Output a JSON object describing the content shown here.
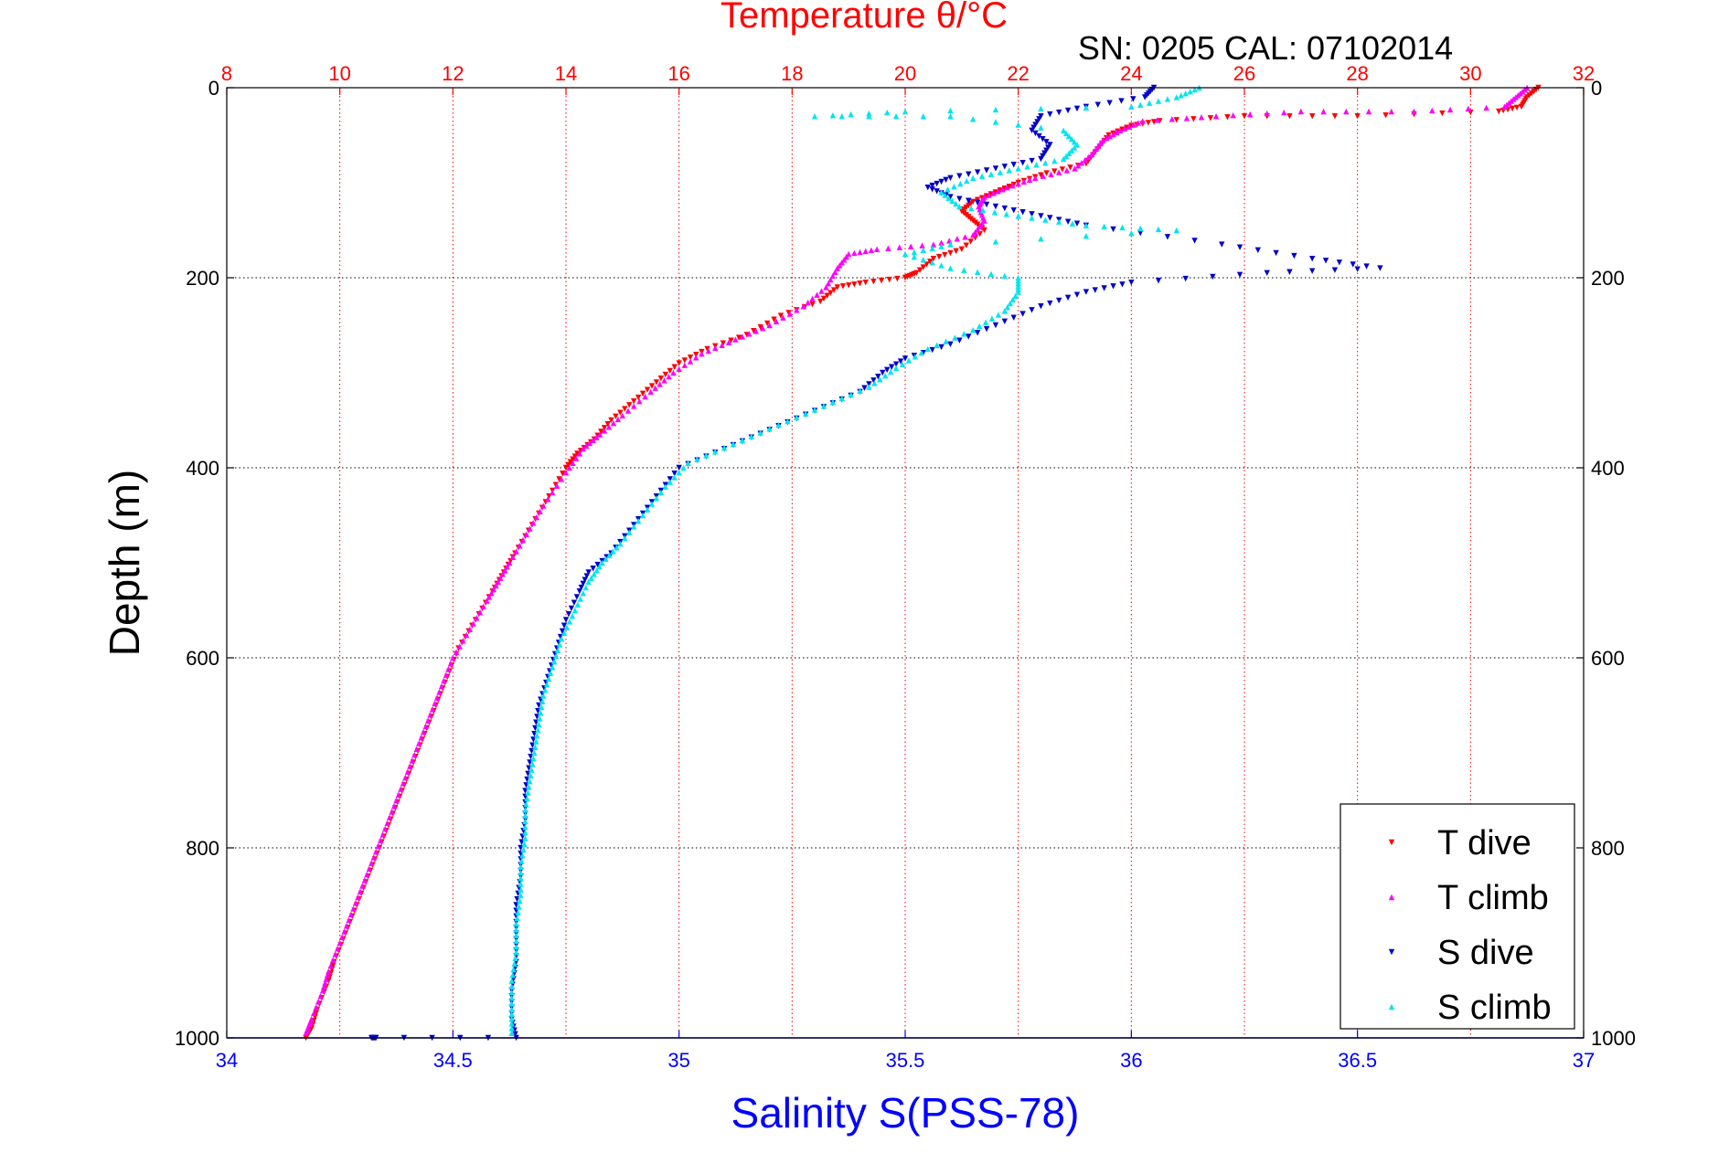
{
  "header": {
    "top_title": "Temperature θ/°C",
    "serial_text": "SN: 0205  CAL: 07102014"
  },
  "colors": {
    "temperature_axis": "#ff0000",
    "salinity_axis": "#0000ff",
    "t_dive": "#ff0000",
    "t_climb": "#ff00ff",
    "s_dive": "#0000cc",
    "s_climb": "#00e5ee",
    "grid": "#000000"
  },
  "chart_data": {
    "type": "scatter",
    "ylabel": "Depth (m)",
    "xlabel_bottom": "Salinity S(PSS-78)",
    "xlabel_top": "Temperature θ/°C",
    "ylim": [
      0,
      1000
    ],
    "y_reversed": true,
    "y_ticks": [
      "0",
      "200",
      "400",
      "600",
      "800",
      "1000"
    ],
    "x_top_lim": [
      8,
      32
    ],
    "x_top_ticks": [
      "8",
      "10",
      "12",
      "14",
      "16",
      "18",
      "20",
      "22",
      "24",
      "26",
      "28",
      "30",
      "32"
    ],
    "x_bottom_lim": [
      34,
      37
    ],
    "x_bottom_ticks": [
      "34",
      "34.5",
      "35",
      "35.5",
      "36",
      "36.5",
      "37"
    ],
    "grid": true,
    "legend_placement": "bottom-right",
    "legend": [
      "T dive",
      "T climb",
      "S dive",
      "S climb"
    ],
    "series": [
      {
        "name": "T dive",
        "axis": "top",
        "marker": "triangle-down",
        "points": [
          [
            31.2,
            0
          ],
          [
            31.0,
            10
          ],
          [
            30.9,
            20
          ],
          [
            30.5,
            25
          ],
          [
            28.0,
            30
          ],
          [
            26.0,
            30
          ],
          [
            24.5,
            35
          ],
          [
            24.0,
            40
          ],
          [
            23.6,
            50
          ],
          [
            23.4,
            65
          ],
          [
            23.2,
            80
          ],
          [
            22.5,
            90
          ],
          [
            22.0,
            100
          ],
          [
            21.6,
            110
          ],
          [
            21.2,
            120
          ],
          [
            21.0,
            130
          ],
          [
            21.2,
            140
          ],
          [
            21.4,
            150
          ],
          [
            21.0,
            170
          ],
          [
            20.5,
            180
          ],
          [
            20.2,
            195
          ],
          [
            20.0,
            200
          ],
          [
            19.3,
            205
          ],
          [
            18.8,
            210
          ],
          [
            18.5,
            225
          ],
          [
            17.8,
            240
          ],
          [
            17.2,
            260
          ],
          [
            16.5,
            275
          ],
          [
            16.0,
            290
          ],
          [
            15.6,
            310
          ],
          [
            15.2,
            330
          ],
          [
            14.8,
            350
          ],
          [
            14.5,
            370
          ],
          [
            14.2,
            385
          ],
          [
            14.0,
            400
          ],
          [
            13.7,
            430
          ],
          [
            13.4,
            460
          ],
          [
            13.1,
            490
          ],
          [
            12.9,
            510
          ],
          [
            12.7,
            530
          ],
          [
            12.4,
            560
          ],
          [
            12.1,
            590
          ],
          [
            11.9,
            620
          ],
          [
            11.7,
            650
          ],
          [
            11.5,
            680
          ],
          [
            11.3,
            710
          ],
          [
            11.1,
            740
          ],
          [
            10.9,
            770
          ],
          [
            10.7,
            800
          ],
          [
            10.5,
            830
          ],
          [
            10.3,
            860
          ],
          [
            10.1,
            890
          ],
          [
            9.9,
            920
          ],
          [
            9.8,
            940
          ],
          [
            9.6,
            970
          ],
          [
            9.5,
            990
          ],
          [
            9.4,
            1000
          ]
        ]
      },
      {
        "name": "T climb",
        "axis": "top",
        "marker": "triangle-up",
        "points": [
          [
            31.0,
            0
          ],
          [
            30.8,
            10
          ],
          [
            30.6,
            20
          ],
          [
            29.0,
            25
          ],
          [
            27.0,
            25
          ],
          [
            25.5,
            30
          ],
          [
            24.2,
            35
          ],
          [
            23.8,
            45
          ],
          [
            23.5,
            55
          ],
          [
            23.3,
            70
          ],
          [
            23.0,
            85
          ],
          [
            22.3,
            95
          ],
          [
            21.8,
            105
          ],
          [
            21.4,
            115
          ],
          [
            21.3,
            125
          ],
          [
            21.4,
            140
          ],
          [
            21.2,
            155
          ],
          [
            20.5,
            165
          ],
          [
            19.5,
            170
          ],
          [
            19.0,
            175
          ],
          [
            18.8,
            190
          ],
          [
            18.6,
            210
          ],
          [
            18.2,
            230
          ],
          [
            17.6,
            250
          ],
          [
            17.0,
            265
          ],
          [
            16.4,
            280
          ],
          [
            15.9,
            300
          ],
          [
            15.5,
            320
          ],
          [
            15.0,
            345
          ],
          [
            14.6,
            365
          ],
          [
            14.3,
            380
          ],
          [
            14.0,
            405
          ],
          [
            13.6,
            440
          ],
          [
            13.3,
            470
          ],
          [
            13.0,
            500
          ],
          [
            12.8,
            520
          ],
          [
            12.6,
            540
          ],
          [
            12.3,
            570
          ],
          [
            12.0,
            600
          ],
          [
            11.8,
            630
          ],
          [
            11.6,
            660
          ],
          [
            11.4,
            690
          ],
          [
            11.2,
            720
          ],
          [
            11.0,
            750
          ],
          [
            10.8,
            780
          ],
          [
            10.6,
            810
          ],
          [
            10.4,
            840
          ],
          [
            10.2,
            870
          ],
          [
            10.0,
            900
          ],
          [
            9.8,
            930
          ],
          [
            9.7,
            950
          ],
          [
            9.5,
            980
          ],
          [
            9.4,
            995
          ]
        ]
      },
      {
        "name": "S dive",
        "axis": "bottom",
        "marker": "triangle-down",
        "points": [
          [
            36.05,
            0
          ],
          [
            36.03,
            10
          ],
          [
            35.9,
            20
          ],
          [
            35.8,
            30
          ],
          [
            35.78,
            45
          ],
          [
            35.82,
            60
          ],
          [
            35.8,
            75
          ],
          [
            35.7,
            85
          ],
          [
            35.6,
            95
          ],
          [
            35.55,
            105
          ],
          [
            35.6,
            115
          ],
          [
            35.7,
            125
          ],
          [
            35.8,
            135
          ],
          [
            35.9,
            145
          ],
          [
            36.2,
            165
          ],
          [
            36.4,
            180
          ],
          [
            36.55,
            190
          ],
          [
            36.3,
            195
          ],
          [
            36.0,
            205
          ],
          [
            35.9,
            215
          ],
          [
            35.8,
            230
          ],
          [
            35.7,
            250
          ],
          [
            35.6,
            270
          ],
          [
            35.5,
            285
          ],
          [
            35.45,
            300
          ],
          [
            35.4,
            320
          ],
          [
            35.3,
            340
          ],
          [
            35.2,
            360
          ],
          [
            35.1,
            380
          ],
          [
            35.0,
            400
          ],
          [
            34.95,
            430
          ],
          [
            34.9,
            460
          ],
          [
            34.85,
            490
          ],
          [
            34.8,
            510
          ],
          [
            34.78,
            530
          ],
          [
            34.75,
            560
          ],
          [
            34.73,
            590
          ],
          [
            34.71,
            620
          ],
          [
            34.69,
            650
          ],
          [
            34.68,
            680
          ],
          [
            34.67,
            710
          ],
          [
            34.66,
            740
          ],
          [
            34.66,
            770
          ],
          [
            34.65,
            800
          ],
          [
            34.65,
            830
          ],
          [
            34.64,
            860
          ],
          [
            34.64,
            890
          ],
          [
            34.64,
            920
          ],
          [
            34.63,
            950
          ],
          [
            34.63,
            980
          ],
          [
            34.64,
            1000
          ],
          [
            34.33,
            1000
          ],
          [
            34.32,
            1000
          ]
        ]
      },
      {
        "name": "S climb",
        "axis": "bottom",
        "marker": "triangle-up",
        "points": [
          [
            36.15,
            0
          ],
          [
            36.1,
            10
          ],
          [
            36.0,
            20
          ],
          [
            35.5,
            25
          ],
          [
            35.3,
            30
          ],
          [
            35.6,
            30
          ],
          [
            35.85,
            45
          ],
          [
            35.88,
            60
          ],
          [
            35.85,
            75
          ],
          [
            35.75,
            85
          ],
          [
            35.65,
            95
          ],
          [
            35.58,
            110
          ],
          [
            35.62,
            125
          ],
          [
            35.75,
            135
          ],
          [
            35.9,
            145
          ],
          [
            36.1,
            150
          ],
          [
            35.6,
            165
          ],
          [
            35.5,
            175
          ],
          [
            35.6,
            190
          ],
          [
            35.75,
            200
          ],
          [
            35.75,
            215
          ],
          [
            35.72,
            235
          ],
          [
            35.65,
            255
          ],
          [
            35.55,
            275
          ],
          [
            35.48,
            295
          ],
          [
            35.42,
            315
          ],
          [
            35.32,
            335
          ],
          [
            35.22,
            355
          ],
          [
            35.12,
            375
          ],
          [
            35.02,
            395
          ],
          [
            34.97,
            420
          ],
          [
            34.92,
            450
          ],
          [
            34.87,
            480
          ],
          [
            34.83,
            500
          ],
          [
            34.8,
            520
          ],
          [
            34.77,
            550
          ],
          [
            34.74,
            580
          ],
          [
            34.72,
            610
          ],
          [
            34.7,
            640
          ],
          [
            34.69,
            670
          ],
          [
            34.68,
            700
          ],
          [
            34.67,
            730
          ],
          [
            34.66,
            760
          ],
          [
            34.66,
            790
          ],
          [
            34.65,
            820
          ],
          [
            34.65,
            850
          ],
          [
            34.64,
            880
          ],
          [
            34.64,
            910
          ],
          [
            34.63,
            940
          ],
          [
            34.63,
            970
          ],
          [
            34.63,
            995
          ]
        ]
      }
    ]
  }
}
